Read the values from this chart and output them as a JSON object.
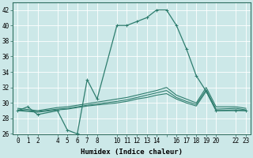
{
  "series": [
    {
      "x": [
        0,
        1,
        2,
        4,
        5,
        6,
        7,
        8,
        10,
        11,
        12,
        13,
        14,
        15,
        16,
        17,
        18,
        19,
        20,
        22,
        23
      ],
      "y": [
        29,
        29.5,
        28.5,
        29,
        26.5,
        26,
        33,
        30.5,
        40,
        40,
        40.5,
        41,
        42,
        42,
        40,
        37,
        33.5,
        31.5,
        29,
        29,
        29
      ],
      "color": "#2e7d6e",
      "lw": 0.9,
      "marker": "+",
      "ms": 2.5
    },
    {
      "x": [
        0,
        2,
        4,
        5,
        6,
        7,
        10,
        11,
        12,
        13,
        14,
        15,
        16,
        17,
        18,
        19,
        20,
        22,
        23
      ],
      "y": [
        29.3,
        29.0,
        29.4,
        29.5,
        29.7,
        29.9,
        30.5,
        30.7,
        31.0,
        31.3,
        31.6,
        32.0,
        31.0,
        30.5,
        30.0,
        32.0,
        29.5,
        29.5,
        29.3
      ],
      "color": "#2e7d6e",
      "lw": 0.8,
      "marker": null,
      "ms": 0
    },
    {
      "x": [
        0,
        2,
        4,
        5,
        6,
        7,
        10,
        11,
        12,
        13,
        14,
        15,
        16,
        17,
        18,
        19,
        20,
        22,
        23
      ],
      "y": [
        29.0,
        28.8,
        29.1,
        29.2,
        29.4,
        29.6,
        30.0,
        30.2,
        30.5,
        30.7,
        31.0,
        31.2,
        30.5,
        30.0,
        29.6,
        31.5,
        29.0,
        29.1,
        29.0
      ],
      "color": "#2e7d6e",
      "lw": 0.8,
      "marker": null,
      "ms": 0
    },
    {
      "x": [
        0,
        2,
        4,
        5,
        6,
        7,
        10,
        11,
        12,
        13,
        14,
        15,
        16,
        17,
        18,
        19,
        20,
        22,
        23
      ],
      "y": [
        29.1,
        28.9,
        29.2,
        29.3,
        29.5,
        29.7,
        30.2,
        30.4,
        30.7,
        31.0,
        31.3,
        31.6,
        30.7,
        30.2,
        29.8,
        31.7,
        29.2,
        29.3,
        29.1
      ],
      "color": "#2e7d6e",
      "lw": 0.8,
      "marker": null,
      "ms": 0
    }
  ],
  "xlim": [
    -0.5,
    23.5
  ],
  "ylim": [
    26,
    43
  ],
  "xticks": [
    0,
    1,
    2,
    4,
    5,
    6,
    7,
    8,
    10,
    11,
    12,
    13,
    14,
    15,
    16,
    17,
    18,
    19,
    20,
    22,
    23
  ],
  "xtick_labels": [
    "0",
    "1",
    "2",
    "4",
    "5",
    "6",
    "7",
    "8",
    "10",
    "11",
    "12",
    "13",
    "14",
    "",
    "16",
    "17",
    "18",
    "19",
    "20",
    "22",
    "23"
  ],
  "yticks": [
    26,
    28,
    30,
    32,
    34,
    36,
    38,
    40,
    42
  ],
  "xlabel": "Humidex (Indice chaleur)",
  "bg_color": "#cce8e8",
  "grid_color": "#ffffff",
  "line_color": "#2e6e60",
  "tick_fontsize": 5.5,
  "xlabel_fontsize": 6.5
}
